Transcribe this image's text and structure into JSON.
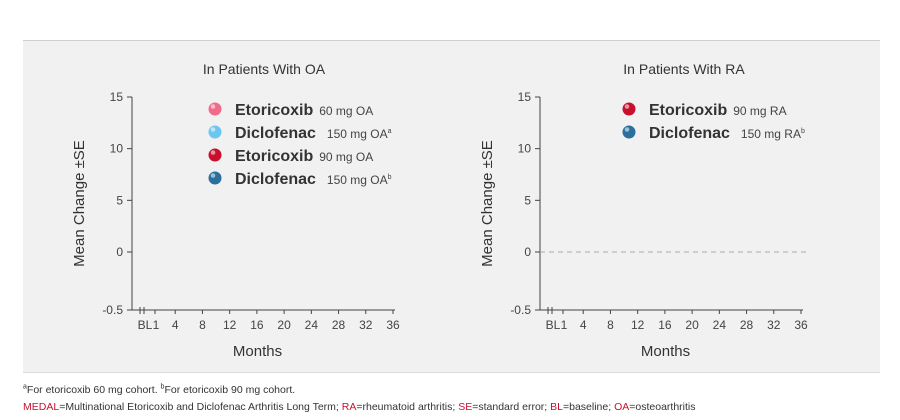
{
  "chart_data": [
    {
      "type": "line",
      "title": "In Patients With OA",
      "xlabel": "Months",
      "ylabel": "Mean Change ±SE",
      "x_ticks": [
        "BL",
        "1",
        "4",
        "8",
        "12",
        "16",
        "20",
        "24",
        "28",
        "32",
        "36"
      ],
      "y_ticks": [
        "-0.5",
        "0",
        "5",
        "10",
        "15"
      ],
      "ylim": [
        -0.5,
        15
      ],
      "reference_line": null,
      "legend": [
        {
          "name": "Etoricoxib",
          "dose": "60 mg OA",
          "sup": "",
          "color": "#f26b8a"
        },
        {
          "name": "Diclofenac",
          "dose": "150 mg OA",
          "sup": "a",
          "color": "#6cc6f0"
        },
        {
          "name": "Etoricoxib",
          "dose": "90 mg OA",
          "sup": "",
          "color": "#c8102e"
        },
        {
          "name": "Diclofenac",
          "dose": "150 mg OA",
          "sup": "b",
          "color": "#2b6f9e"
        }
      ],
      "series": []
    },
    {
      "type": "line",
      "title": "In Patients With RA",
      "xlabel": "Months",
      "ylabel": "Mean Change ±SE",
      "x_ticks": [
        "BL",
        "1",
        "4",
        "8",
        "12",
        "16",
        "20",
        "24",
        "28",
        "32",
        "36"
      ],
      "y_ticks": [
        "-0.5",
        "0",
        "5",
        "10",
        "15"
      ],
      "ylim": [
        -0.5,
        15
      ],
      "reference_line": 0,
      "legend": [
        {
          "name": "Etoricoxib",
          "dose": "90 mg RA",
          "sup": "",
          "color": "#c8102e"
        },
        {
          "name": "Diclofenac",
          "dose": "150 mg RA",
          "sup": "b",
          "color": "#2b6f9e"
        }
      ],
      "series": []
    }
  ],
  "footnotes": {
    "line1": {
      "sup_a": "a",
      "text_a": "For etoricoxib 60 mg cohort. ",
      "sup_b": "b",
      "text_b": "For etoricoxib 90 mg cohort."
    },
    "line2": [
      {
        "abbr": "MEDAL",
        "def": "=Multinational Etoricoxib and Diclofenac Arthritis Long Term; "
      },
      {
        "abbr": "RA",
        "def": "=rheumatoid arthritis; "
      },
      {
        "abbr": "SE",
        "def": "=standard error; "
      },
      {
        "abbr": "BL",
        "def": "=baseline; "
      },
      {
        "abbr": "OA",
        "def": "=osteoarthritis"
      }
    ]
  },
  "colors": {
    "accent": "#c8102e",
    "panel": "#f1f1f1"
  }
}
